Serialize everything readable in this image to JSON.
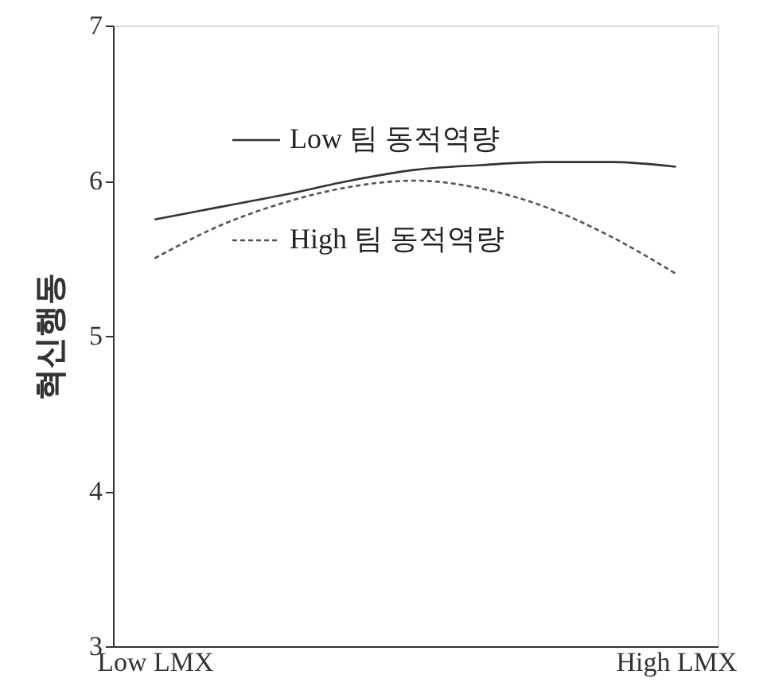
{
  "chart_data": {
    "type": "line",
    "ylabel": "혁신행동",
    "categories": [
      "Low LMX",
      null,
      null,
      null,
      null,
      null,
      null,
      null,
      "High LMX"
    ],
    "series": [
      {
        "name": "Low 팀 동적역량",
        "color": "#333333",
        "line_style": "solid",
        "values": [
          5.75,
          5.83,
          5.91,
          6.0,
          6.07,
          6.1,
          6.12,
          6.12,
          6.09
        ]
      },
      {
        "name": "High 팀 동적역량",
        "color": "#555555",
        "line_style": "dashed",
        "values": [
          5.5,
          5.71,
          5.86,
          5.96,
          6.0,
          5.95,
          5.83,
          5.64,
          5.4
        ]
      }
    ],
    "ylim": [
      3,
      7
    ],
    "yticks": [
      3,
      4,
      5,
      6,
      7
    ],
    "grid": false,
    "legend": "top left",
    "marker": "none"
  }
}
